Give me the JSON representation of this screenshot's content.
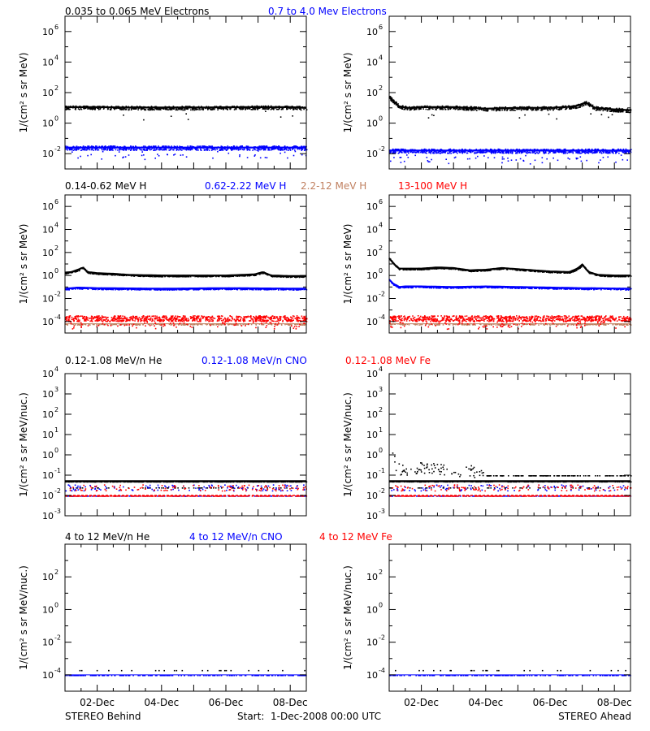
{
  "rows": [
    {
      "legend": [
        {
          "text": "0.035 to 0.065 MeV Electrons",
          "color": "#000000"
        },
        {
          "text": "0.7 to 4.0 Mev Electrons",
          "color": "#0000ff"
        }
      ]
    },
    {
      "legend": [
        {
          "text": "0.14-0.62 MeV H",
          "color": "#000000"
        },
        {
          "text": "0.62-2.22 MeV H",
          "color": "#0000ff"
        },
        {
          "text": "2.2-12 MeV H",
          "color": "#c08060"
        },
        {
          "text": "13-100 MeV H",
          "color": "#ff0000"
        }
      ]
    },
    {
      "legend": [
        {
          "text": "0.12-1.08 MeV/n He",
          "color": "#000000"
        },
        {
          "text": "0.12-1.08 MeV/n CNO",
          "color": "#0000ff"
        },
        {
          "text": "0.12-1.08 MeV Fe",
          "color": "#ff0000"
        }
      ]
    },
    {
      "legend": [
        {
          "text": "4 to 12 MeV/n He",
          "color": "#000000"
        },
        {
          "text": "4 to 12 MeV/n CNO",
          "color": "#0000ff"
        },
        {
          "text": "4 to 12 MeV Fe",
          "color": "#ff0000"
        }
      ]
    }
  ],
  "footer": {
    "left": "STEREO Behind",
    "center": "Start:  1-Dec-2008 00:00 UTC",
    "right": "STEREO Ahead"
  },
  "chart_data": [
    {
      "type": "scatter",
      "spacecraft": "STEREO Behind",
      "ylabel": "1/(cm² s sr MeV)",
      "yscale": "log",
      "ylim_exp": [
        -3,
        7
      ],
      "yticks_exp": [
        -2,
        0,
        2,
        4,
        6
      ],
      "xlim_days": [
        0,
        7.5
      ],
      "xticks": [
        "02-Dec",
        "04-Dec",
        "06-Dec",
        "08-Dec"
      ],
      "series": [
        {
          "name": "0.035 to 0.065 MeV Electrons",
          "color": "#000000",
          "x": [
            0,
            1,
            2,
            3,
            4,
            5,
            6,
            7,
            7.5
          ],
          "log10_y": [
            1.05,
            1.05,
            1.02,
            1.02,
            1.02,
            1.04,
            1.05,
            1.05,
            1.0
          ]
        },
        {
          "name": "0.7 to 4.0 Mev Electrons",
          "color": "#0000ff",
          "x": [
            0,
            3.75,
            7.5
          ],
          "log10_y": [
            -1.6,
            -1.6,
            -1.6
          ]
        }
      ]
    },
    {
      "type": "scatter",
      "spacecraft": "STEREO Ahead",
      "ylabel": "1/(cm² s sr MeV)",
      "yscale": "log",
      "ylim_exp": [
        -3,
        7
      ],
      "yticks_exp": [
        -2,
        0,
        2,
        4,
        6
      ],
      "xlim_days": [
        0,
        7.5
      ],
      "xticks": [
        "02-Dec",
        "04-Dec",
        "06-Dec",
        "08-Dec"
      ],
      "series": [
        {
          "name": "0.035 to 0.065 MeV Electrons",
          "color": "#000000",
          "x": [
            0,
            0.1,
            0.3,
            0.6,
            1,
            2,
            3,
            4,
            5,
            5.8,
            6.1,
            6.4,
            7,
            7.5
          ],
          "log10_y": [
            1.7,
            1.5,
            1.1,
            1.0,
            1.05,
            1.05,
            0.95,
            1.0,
            1.0,
            1.1,
            1.35,
            1.0,
            0.9,
            0.85
          ]
        },
        {
          "name": "0.7 to 4.0 Mev Electrons",
          "color": "#0000ff",
          "x": [
            0,
            3.75,
            7.5
          ],
          "log10_y": [
            -1.8,
            -1.8,
            -1.8
          ]
        }
      ]
    },
    {
      "type": "scatter",
      "spacecraft": "STEREO Behind",
      "ylabel": "1/(cm² s sr MeV)",
      "yscale": "log",
      "ylim_exp": [
        -5,
        7
      ],
      "yticks_exp": [
        -4,
        -2,
        0,
        2,
        4,
        6
      ],
      "xlim_days": [
        0,
        7.5
      ],
      "xticks": [
        "02-Dec",
        "04-Dec",
        "06-Dec",
        "08-Dec"
      ],
      "series": [
        {
          "name": "0.14-0.62 MeV H",
          "color": "#000000",
          "x": [
            0,
            0.2,
            0.45,
            0.55,
            0.7,
            1.0,
            1.5,
            2.0,
            3,
            4,
            5,
            5.9,
            6.15,
            6.4,
            7,
            7.5
          ],
          "log10_y": [
            0.25,
            0.3,
            0.55,
            0.7,
            0.3,
            0.2,
            0.15,
            0.05,
            0.0,
            0.0,
            0.0,
            0.1,
            0.3,
            0.0,
            -0.05,
            -0.05
          ]
        },
        {
          "name": "0.62-2.22 MeV H",
          "color": "#0000ff",
          "x": [
            0,
            0.4,
            1,
            3,
            5,
            7.5
          ],
          "log10_y": [
            -1.15,
            -1.05,
            -1.1,
            -1.15,
            -1.1,
            -1.15
          ]
        },
        {
          "name": "2.2-12 MeV H",
          "color": "#c08060",
          "x": [
            0,
            7.5
          ],
          "log10_y": [
            -4.2,
            -4.2
          ]
        },
        {
          "name": "13-100 MeV H",
          "color": "#ff0000",
          "x": [
            0,
            7.5
          ],
          "log10_y": [
            -3.7,
            -3.7
          ]
        }
      ]
    },
    {
      "type": "scatter",
      "spacecraft": "STEREO Ahead",
      "ylabel": "1/(cm² s sr MeV)",
      "yscale": "log",
      "ylim_exp": [
        -5,
        7
      ],
      "yticks_exp": [
        -4,
        -2,
        0,
        2,
        4,
        6
      ],
      "xlim_days": [
        0,
        7.5
      ],
      "xticks": [
        "02-Dec",
        "04-Dec",
        "06-Dec",
        "08-Dec"
      ],
      "series": [
        {
          "name": "0.14-0.62 MeV H",
          "color": "#000000",
          "x": [
            0,
            0.15,
            0.3,
            0.5,
            1,
            1.5,
            2.0,
            2.5,
            3,
            3.5,
            4,
            4.5,
            5,
            5.6,
            5.85,
            6.0,
            6.2,
            6.5,
            7,
            7.5
          ],
          "log10_y": [
            1.5,
            1.0,
            0.6,
            0.6,
            0.6,
            0.7,
            0.65,
            0.45,
            0.5,
            0.65,
            0.55,
            0.45,
            0.35,
            0.3,
            0.6,
            0.95,
            0.3,
            0.05,
            0.0,
            0.0
          ]
        },
        {
          "name": "0.62-2.22 MeV H",
          "color": "#0000ff",
          "x": [
            0,
            0.12,
            0.3,
            0.5,
            1,
            2,
            3,
            4,
            5,
            6,
            7.5
          ],
          "log10_y": [
            -0.35,
            -0.7,
            -1.0,
            -0.95,
            -0.95,
            -1.0,
            -0.95,
            -1.0,
            -1.05,
            -1.1,
            -1.15
          ]
        },
        {
          "name": "2.2-12 MeV H",
          "color": "#c08060",
          "x": [
            0,
            7.5
          ],
          "log10_y": [
            -4.2,
            -4.2
          ]
        },
        {
          "name": "13-100 MeV H",
          "color": "#ff0000",
          "x": [
            0,
            7.5
          ],
          "log10_y": [
            -3.7,
            -3.7
          ]
        }
      ]
    },
    {
      "type": "scatter",
      "spacecraft": "STEREO Behind",
      "ylabel": "1/(cm² s sr MeV/nuc.)",
      "yscale": "log",
      "ylim_exp": [
        -3,
        4
      ],
      "yticks_exp": [
        -3,
        -2,
        -1,
        0,
        1,
        2,
        3,
        4
      ],
      "xlim_days": [
        0,
        7.5
      ],
      "xticks": [
        "02-Dec",
        "04-Dec",
        "06-Dec",
        "08-Dec"
      ],
      "series": [
        {
          "name": "0.12-1.08 MeV/n He",
          "color": "#000000",
          "x": [
            0,
            7.5
          ],
          "log10_y": [
            -1.3,
            -1.3
          ]
        },
        {
          "name": "0.12-1.08 MeV/n CNO",
          "color": "#0000ff",
          "x": [
            0,
            7.5
          ],
          "log10_y": [
            -2.0,
            -2.0
          ]
        },
        {
          "name": "0.12-1.08 MeV Fe",
          "color": "#ff0000",
          "x": [
            0,
            7.5
          ],
          "log10_y": [
            -2.0,
            -2.0
          ]
        }
      ]
    },
    {
      "type": "scatter",
      "spacecraft": "STEREO Ahead",
      "ylabel": "1/(cm² s sr MeV/nuc.)",
      "yscale": "log",
      "ylim_exp": [
        -3,
        4
      ],
      "yticks_exp": [
        -3,
        -2,
        -1,
        0,
        1,
        2,
        3,
        4
      ],
      "xlim_days": [
        0,
        7.5
      ],
      "xticks": [
        "02-Dec",
        "04-Dec",
        "06-Dec",
        "08-Dec"
      ],
      "series": [
        {
          "name": "0.12-1.08 MeV/n He",
          "color": "#000000",
          "x": [
            0,
            0.1,
            0.2,
            0.35,
            0.6,
            1,
            1.5,
            2,
            2.5,
            3,
            7.5
          ],
          "log10_y": [
            0.3,
            -0.1,
            -0.6,
            -0.9,
            -0.85,
            -0.75,
            -0.8,
            -0.85,
            -0.9,
            -1.0,
            -1.0
          ]
        },
        {
          "name": "0.12-1.08 MeV/n CNO",
          "color": "#0000ff",
          "x": [
            0,
            7.5
          ],
          "log10_y": [
            -2.0,
            -2.0
          ]
        },
        {
          "name": "0.12-1.08 MeV Fe",
          "color": "#ff0000",
          "x": [
            0,
            7.5
          ],
          "log10_y": [
            -2.0,
            -2.0
          ]
        }
      ]
    },
    {
      "type": "scatter",
      "spacecraft": "STEREO Behind",
      "ylabel": "1/(cm² s sr MeV/nuc.)",
      "yscale": "log",
      "ylim_exp": [
        -5,
        4
      ],
      "yticks_exp": [
        -4,
        -2,
        0,
        2
      ],
      "xlim_days": [
        0,
        7.5
      ],
      "xticks": [
        "02-Dec",
        "04-Dec",
        "06-Dec",
        "08-Dec"
      ],
      "series": [
        {
          "name": "4 to 12 MeV/n He",
          "color": "#000000",
          "x": [
            0,
            7.5
          ],
          "log10_y": [
            -3.7,
            -3.7
          ]
        },
        {
          "name": "4 to 12 MeV/n CNO",
          "color": "#0000ff",
          "x": [
            0,
            7.5
          ],
          "log10_y": [
            -4.0,
            -4.0
          ]
        }
      ]
    },
    {
      "type": "scatter",
      "spacecraft": "STEREO Ahead",
      "ylabel": "1/(cm² s sr MeV/nuc.)",
      "yscale": "log",
      "ylim_exp": [
        -5,
        4
      ],
      "yticks_exp": [
        -4,
        -2,
        0,
        2
      ],
      "xlim_days": [
        0,
        7.5
      ],
      "xticks": [
        "02-Dec",
        "04-Dec",
        "06-Dec",
        "08-Dec"
      ],
      "series": [
        {
          "name": "4 to 12 MeV/n He",
          "color": "#000000",
          "x": [
            0,
            7.5
          ],
          "log10_y": [
            -3.7,
            -3.7
          ]
        },
        {
          "name": "4 to 12 MeV/n CNO",
          "color": "#0000ff",
          "x": [
            0,
            7.5
          ],
          "log10_y": [
            -4.0,
            -4.0
          ]
        }
      ]
    }
  ]
}
